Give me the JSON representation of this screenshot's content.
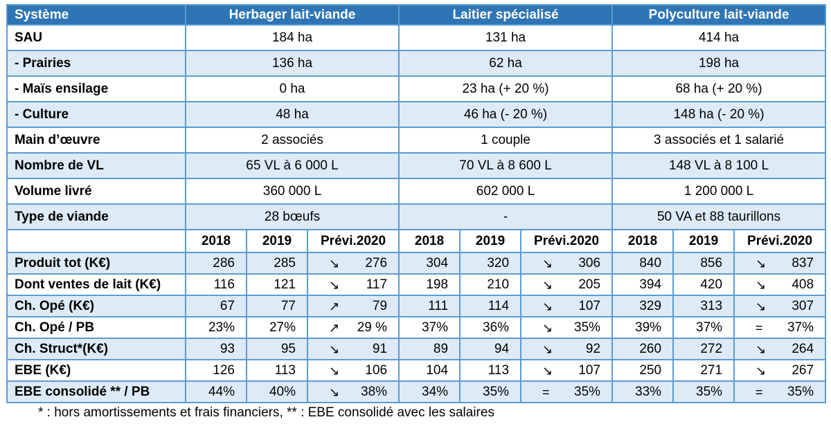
{
  "colors": {
    "header_bg": "#2F75B5",
    "header_fg": "#FFFFFF",
    "row_alt": "#DEEBF7",
    "border": "#5B9BD5",
    "text": "#000000"
  },
  "trend_glyphs": {
    "down": "↘",
    "up": "↗",
    "equal": "="
  },
  "table": {
    "header": [
      "Système",
      "Herbager lait-viande",
      "Laitier spécialisé",
      "Polyculture lait-viande"
    ],
    "info_rows": [
      {
        "label": "SAU",
        "values": [
          "184 ha",
          "131 ha",
          "414 ha"
        ]
      },
      {
        "label": "- Prairies",
        "values": [
          "136 ha",
          "62 ha",
          "198 ha"
        ]
      },
      {
        "label": "- Maïs ensilage",
        "values": [
          "0 ha",
          "23 ha (+ 20 %)",
          "68 ha (+ 20 %)"
        ]
      },
      {
        "label": "- Culture",
        "values": [
          "48 ha",
          "46 ha (- 20 %)",
          "148 ha (- 20 %)"
        ]
      },
      {
        "label": "Main d’œuvre",
        "values": [
          "2 associés",
          "1 couple",
          "3 associés et 1 salarié"
        ]
      },
      {
        "label": "Nombre de VL",
        "values": [
          "65 VL à 6 000 L",
          "70 VL à 8 600 L",
          "148 VL à 8 100 L"
        ]
      },
      {
        "label": "Volume livré",
        "values": [
          "360 000 L",
          "602 000 L",
          "1 200 000 L"
        ]
      },
      {
        "label": "Type de viande",
        "values": [
          "28 bœufs",
          "-",
          "50 VA et 88 taurillons"
        ]
      }
    ],
    "year_headers": [
      "2018",
      "2019",
      "Prévi.2020"
    ],
    "finance_rows": [
      {
        "label": "Produit tot (K€)",
        "groups": [
          {
            "y2018": "286",
            "y2019": "285",
            "trend": "down",
            "previ": "276"
          },
          {
            "y2018": "304",
            "y2019": "320",
            "trend": "down",
            "previ": "306"
          },
          {
            "y2018": "840",
            "y2019": "856",
            "trend": "down",
            "previ": "837"
          }
        ]
      },
      {
        "label": "Dont ventes de lait (K€)",
        "groups": [
          {
            "y2018": "116",
            "y2019": "121",
            "trend": "down",
            "previ": "117"
          },
          {
            "y2018": "198",
            "y2019": "210",
            "trend": "down",
            "previ": "205"
          },
          {
            "y2018": "394",
            "y2019": "420",
            "trend": "down",
            "previ": "408"
          }
        ]
      },
      {
        "label": "Ch. Opé (K€)",
        "groups": [
          {
            "y2018": "67",
            "y2019": "77",
            "trend": "up",
            "previ": "79"
          },
          {
            "y2018": "111",
            "y2019": "114",
            "trend": "down",
            "previ": "107"
          },
          {
            "y2018": "329",
            "y2019": "313",
            "trend": "down",
            "previ": "307"
          }
        ]
      },
      {
        "label": "Ch. Opé / PB",
        "groups": [
          {
            "y2018": "23%",
            "y2019": "27%",
            "trend": "up",
            "previ": "29 %"
          },
          {
            "y2018": "37%",
            "y2019": "36%",
            "trend": "down",
            "previ": "35%"
          },
          {
            "y2018": "39%",
            "y2019": "37%",
            "trend": "equal",
            "previ": "37%"
          }
        ]
      },
      {
        "label": "Ch. Struct*(K€)",
        "groups": [
          {
            "y2018": "93",
            "y2019": "95",
            "trend": "down",
            "previ": "91"
          },
          {
            "y2018": "89",
            "y2019": "94",
            "trend": "down",
            "previ": "92"
          },
          {
            "y2018": "260",
            "y2019": "272",
            "trend": "down",
            "previ": "264"
          }
        ]
      },
      {
        "label": "EBE (K€)",
        "groups": [
          {
            "y2018": "126",
            "y2019": "113",
            "trend": "down",
            "previ": "106"
          },
          {
            "y2018": "104",
            "y2019": "113",
            "trend": "down",
            "previ": "107"
          },
          {
            "y2018": "250",
            "y2019": "271",
            "trend": "down",
            "previ": "267"
          }
        ]
      },
      {
        "label": "EBE consolidé ** / PB",
        "groups": [
          {
            "y2018": "44%",
            "y2019": "40%",
            "trend": "down",
            "previ": "38%"
          },
          {
            "y2018": "34%",
            "y2019": "35%",
            "trend": "equal",
            "previ": "35%"
          },
          {
            "y2018": "33%",
            "y2019": "35%",
            "trend": "equal",
            "previ": "35%"
          }
        ]
      }
    ],
    "footnote": "* : hors amortissements et frais financiers, ** : EBE consolidé avec les salaires"
  }
}
